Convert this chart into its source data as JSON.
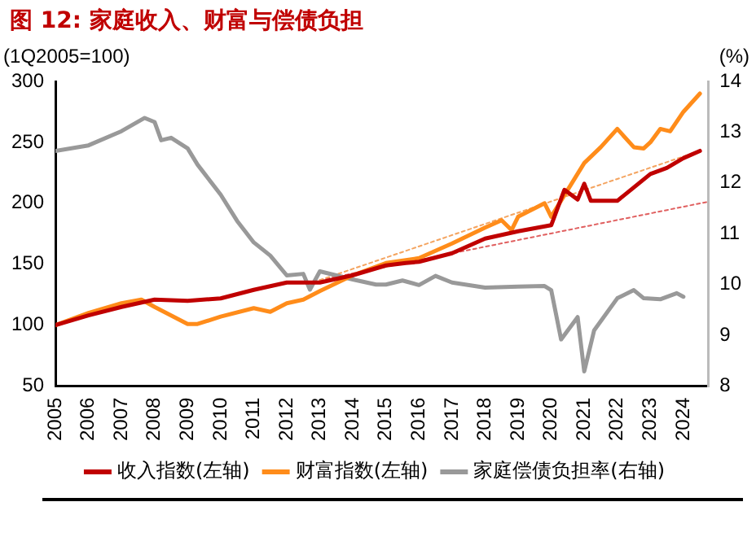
{
  "chart_data": {
    "type": "line",
    "title": "图 12: 家庭收入、财富与偿债负担",
    "ylabel": "(1Q2005=100)",
    "y2label": "(%)",
    "xlim": [
      2005,
      2024.75
    ],
    "xticks": [
      2005,
      2006,
      2007,
      2008,
      2009,
      2010,
      2011,
      2012,
      2013,
      2014,
      2015,
      2016,
      2017,
      2018,
      2019,
      2020,
      2021,
      2022,
      2023,
      2024
    ],
    "ylim": [
      50,
      300
    ],
    "yticks": [
      50,
      100,
      150,
      200,
      250,
      300
    ],
    "y2lim": [
      8,
      14
    ],
    "y2ticks": [
      8,
      9,
      10,
      11,
      12,
      13,
      14
    ],
    "legend": "bottom",
    "grid": false,
    "marker": "none",
    "line_style": "solid",
    "series": [
      {
        "name": "收入指数(左轴)",
        "color": "#c00000",
        "x": [
          2005,
          2006,
          2007,
          2008,
          2009,
          2010,
          2011,
          2012,
          2013,
          2014,
          2015,
          2015.6,
          2016,
          2017,
          2018,
          2019,
          2020,
          2020.4,
          2020.8,
          2021,
          2021.2,
          2022,
          2022.5,
          2023,
          2023.5,
          2024,
          2024.5
        ],
        "values": [
          100,
          108,
          115,
          121,
          120,
          122,
          129,
          135,
          135,
          141,
          149,
          151,
          152,
          159,
          171,
          177,
          182,
          211,
          203,
          216,
          202,
          202,
          213,
          224,
          229,
          237,
          243
        ]
      },
      {
        "name": "财富指数(左轴)",
        "color": "#ff8c1a",
        "x": [
          2005,
          2006,
          2007,
          2007.6,
          2008,
          2009,
          2009.3,
          2010,
          2011,
          2011.5,
          2012,
          2012.5,
          2013,
          2014,
          2015,
          2016,
          2017,
          2018,
          2018.5,
          2018.8,
          2019,
          2019.8,
          2020,
          2020.5,
          2021,
          2021.5,
          2022,
          2022.5,
          2022.8,
          2023,
          2023.3,
          2023.6,
          2024,
          2024.5
        ],
        "values": [
          100,
          110,
          118,
          121,
          115,
          101,
          101,
          107,
          114,
          111,
          118,
          121,
          128,
          141,
          151,
          155,
          167,
          180,
          186,
          178,
          189,
          200,
          189,
          211,
          233,
          246,
          261,
          246,
          245,
          250,
          261,
          259,
          275,
          290
        ]
      },
      {
        "name": "家庭偿债负担率(右轴)",
        "color": "#999999",
        "axis": "y2",
        "x": [
          2005,
          2006,
          2007,
          2007.7,
          2008,
          2008.2,
          2008.5,
          2009,
          2009.3,
          2010,
          2010.5,
          2011,
          2011.5,
          2012,
          2012.5,
          2012.7,
          2013,
          2014,
          2014.7,
          2015,
          2015.5,
          2016,
          2016.5,
          2017,
          2018,
          2019,
          2019.8,
          2020,
          2020.3,
          2020.8,
          2021,
          2021.3,
          2022,
          2022.5,
          2022.8,
          2023.3,
          2023.8,
          2024
        ],
        "values": [
          12.63,
          12.74,
          13.02,
          13.28,
          13.2,
          12.84,
          12.89,
          12.68,
          12.36,
          11.77,
          11.25,
          10.83,
          10.57,
          10.18,
          10.21,
          9.9,
          10.26,
          10.1,
          10,
          10,
          10.08,
          9.99,
          10.17,
          10.04,
          9.94,
          9.96,
          9.97,
          9.89,
          8.92,
          9.36,
          8.29,
          9.1,
          9.73,
          9.89,
          9.73,
          9.71,
          9.83,
          9.76
        ]
      },
      {
        "type": "line",
        "color": "#f4a460",
        "line_style": "dotted",
        "x": [
          2013,
          2024.5
        ],
        "values": [
          137,
          243
        ]
      },
      {
        "type": "line",
        "color": "#e06060",
        "line_style": "dotted",
        "x": [
          2013,
          2024.7
        ],
        "values": [
          137,
          201
        ]
      }
    ]
  }
}
